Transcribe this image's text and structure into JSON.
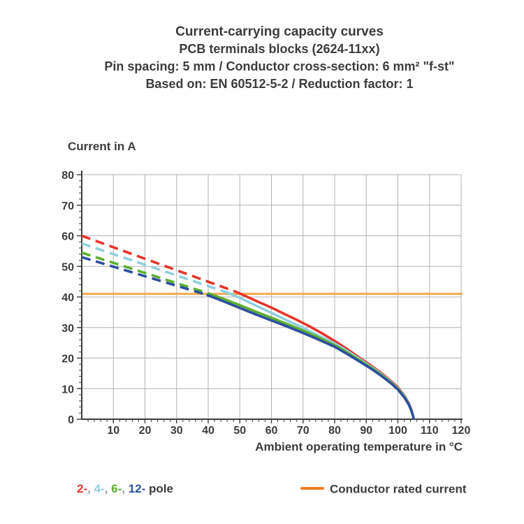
{
  "title_block": {
    "line1": "Current-carrying capacity curves",
    "line2": "PCB terminals blocks (2624-11xx)",
    "line3": "Pin spacing: 5 mm / Conductor cross-section: 6 mm² \"f-st\"",
    "line4": "Based on: EN 60512-5-2 / Reduction factor: 1"
  },
  "y_axis_title": "Current in A",
  "x_axis_title": "Ambient operating temperature in °C",
  "legend": {
    "pole_parts": [
      {
        "text": "2-",
        "color": "#e5342b"
      },
      {
        "text": ", ",
        "color": "#9d9d9c"
      },
      {
        "text": "4-",
        "color": "#8fd0de"
      },
      {
        "text": ", ",
        "color": "#9d9d9c"
      },
      {
        "text": "6-",
        "color": "#5cae2d"
      },
      {
        "text": ", ",
        "color": "#9d9d9c"
      },
      {
        "text": "12-",
        "color": "#2d4f9e"
      },
      {
        "text": " pole",
        "color": "#3c3c3b"
      }
    ],
    "rated_label": "Conductor rated current",
    "rated_color": "#ee7d23"
  },
  "colors": {
    "grid": "#b2b2b2",
    "axis": "#3c3c3b",
    "rated_line": "#f3aa4e",
    "text": "#3c3c3b"
  },
  "chart_data": {
    "type": "line",
    "title": "Current-carrying capacity curves",
    "xlabel": "Ambient operating temperature in °C",
    "ylabel": "Current in A",
    "xlim": [
      0,
      120
    ],
    "ylim": [
      0,
      80
    ],
    "x_ticks": [
      10,
      20,
      30,
      40,
      50,
      60,
      70,
      80,
      90,
      100,
      110,
      120
    ],
    "y_ticks": [
      0,
      10,
      20,
      30,
      40,
      50,
      60,
      70,
      80
    ],
    "grid": true,
    "rated_current_A": 41,
    "legend_position": "bottom",
    "series": [
      {
        "name": "2-pole",
        "color": "#e5342b",
        "dashed_points": [
          [
            0,
            60
          ],
          [
            49,
            41.6
          ]
        ],
        "solid_points": [
          [
            49,
            41.6
          ],
          [
            52,
            40.2
          ],
          [
            56,
            38.3
          ],
          [
            60,
            36.5
          ],
          [
            64,
            34.5
          ],
          [
            68,
            32.5
          ],
          [
            72,
            30.4
          ],
          [
            76,
            28.1
          ],
          [
            80,
            25.6
          ],
          [
            84,
            22.9
          ],
          [
            88,
            20.0
          ],
          [
            92,
            17.2
          ],
          [
            95,
            14.9
          ],
          [
            98,
            12.3
          ],
          [
            100,
            10.4
          ],
          [
            102,
            7.8
          ],
          [
            103.5,
            5.2
          ],
          [
            104.4,
            2.8
          ],
          [
            104.9,
            0.8
          ],
          [
            105,
            0
          ]
        ]
      },
      {
        "name": "4-pole",
        "color": "#8fd0de",
        "dashed_points": [
          [
            0,
            57.5
          ],
          [
            45,
            41.8
          ]
        ],
        "solid_points": [
          [
            45,
            41.8
          ],
          [
            50,
            39.7
          ],
          [
            55,
            37.2
          ],
          [
            60,
            34.8
          ],
          [
            65,
            32.3
          ],
          [
            70,
            29.9
          ],
          [
            75,
            27.3
          ],
          [
            80,
            24.8
          ],
          [
            84,
            22.3
          ],
          [
            88,
            19.6
          ],
          [
            92,
            16.8
          ],
          [
            95,
            14.6
          ],
          [
            98,
            12.0
          ],
          [
            100,
            10.1
          ],
          [
            102,
            7.6
          ],
          [
            103.5,
            5.0
          ],
          [
            104.4,
            2.6
          ],
          [
            104.9,
            0.7
          ],
          [
            105,
            0
          ]
        ]
      },
      {
        "name": "6-pole",
        "color": "#5cae2d",
        "dashed_points": [
          [
            0,
            54.5
          ],
          [
            40,
            41.2
          ]
        ],
        "solid_points": [
          [
            40,
            41.2
          ],
          [
            45,
            39.3
          ],
          [
            50,
            37.3
          ],
          [
            55,
            35.2
          ],
          [
            60,
            33.2
          ],
          [
            65,
            31.1
          ],
          [
            70,
            29.0
          ],
          [
            75,
            26.7
          ],
          [
            80,
            24.2
          ],
          [
            84,
            21.8
          ],
          [
            88,
            19.2
          ],
          [
            92,
            16.5
          ],
          [
            95,
            14.3
          ],
          [
            98,
            11.8
          ],
          [
            100,
            9.9
          ],
          [
            102,
            7.4
          ],
          [
            103.5,
            4.8
          ],
          [
            104.4,
            2.4
          ],
          [
            104.9,
            0.6
          ],
          [
            105,
            0
          ]
        ]
      },
      {
        "name": "12-pole",
        "color": "#2d4f9e",
        "dashed_points": [
          [
            0,
            53
          ],
          [
            39.5,
            40.7
          ]
        ],
        "solid_points": [
          [
            39.5,
            40.7
          ],
          [
            45,
            38.5
          ],
          [
            50,
            36.4
          ],
          [
            55,
            34.3
          ],
          [
            60,
            32.3
          ],
          [
            65,
            30.3
          ],
          [
            70,
            28.2
          ],
          [
            75,
            26.0
          ],
          [
            80,
            23.7
          ],
          [
            84,
            21.3
          ],
          [
            88,
            18.8
          ],
          [
            92,
            16.2
          ],
          [
            95,
            14.0
          ],
          [
            98,
            11.6
          ],
          [
            100,
            9.7
          ],
          [
            102,
            7.2
          ],
          [
            103.5,
            4.7
          ],
          [
            104.4,
            2.3
          ],
          [
            104.9,
            0.5
          ],
          [
            105,
            0
          ]
        ]
      }
    ]
  }
}
